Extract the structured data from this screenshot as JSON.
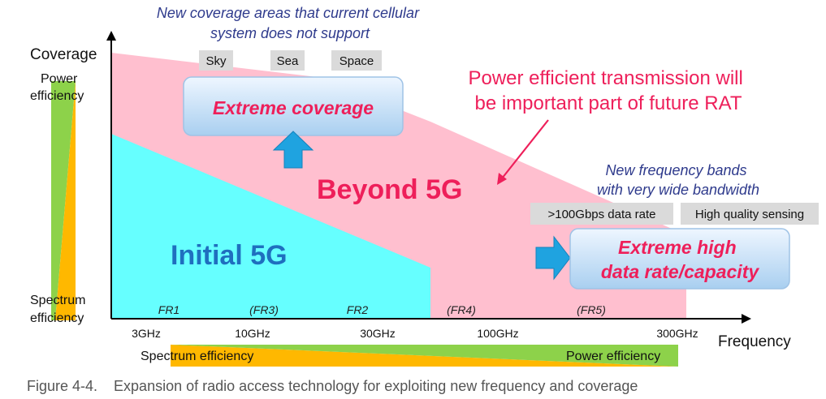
{
  "axes": {
    "y_label": "Coverage",
    "x_label": "Frequency",
    "y_gauge_top": [
      "Power",
      "efficiency"
    ],
    "y_gauge_bottom": [
      "Spectrum",
      "efficiency"
    ],
    "x_gauge_left": "Spectrum efficiency",
    "x_gauge_right": "Power efficiency"
  },
  "frequency_ticks": [
    "3GHz",
    "10GHz",
    "30GHz",
    "100GHz",
    "300GHz"
  ],
  "frequency_ranges": [
    "FR1",
    "(FR3)",
    "FR2",
    "(FR4)",
    "(FR5)"
  ],
  "regions": {
    "initial": "Initial 5G",
    "beyond": "Beyond 5G"
  },
  "coverage_note": [
    "New coverage areas that current cellular",
    "system does not support"
  ],
  "coverage_tags": [
    "Sky",
    "Sea",
    "Space"
  ],
  "coverage_box": "Extreme coverage",
  "power_note": [
    "Power efficient transmission will",
    "be important part of future RAT"
  ],
  "bands_note": [
    "New frequency bands",
    "with very wide bandwidth"
  ],
  "capacity_tags": [
    ">100Gbps data rate",
    "High quality sensing"
  ],
  "capacity_box": [
    "Extreme high",
    "data rate/capacity"
  ],
  "caption": "Figure 4-4.    Expansion of radio access technology for exploiting new frequency and coverage",
  "colors": {
    "pink": "#FFBFCF",
    "cyan": "#66FFFF",
    "blue_text": "#1F6FBF",
    "red_text": "#EE1F5A",
    "arrow_blue": "#1FA3E0",
    "green": "#8DD24A",
    "orange": "#FFB800"
  }
}
